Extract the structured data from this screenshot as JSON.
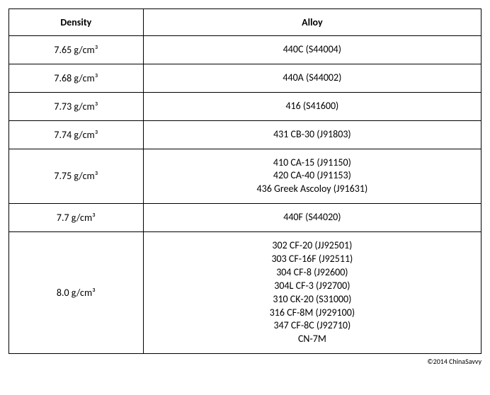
{
  "table": {
    "columns": [
      "Density",
      "Alloy"
    ],
    "rows": [
      {
        "density": "7.65 g/cm³",
        "alloys": [
          "440C (S44004)"
        ]
      },
      {
        "density": "7.68 g/cm³",
        "alloys": [
          "440A (S44002)"
        ]
      },
      {
        "density": "7.73 g/cm³",
        "alloys": [
          "416 (S41600)"
        ]
      },
      {
        "density": "7.74 g/cm³",
        "alloys": [
          "431 CB-30 (J91803)"
        ]
      },
      {
        "density": "7.75 g/cm³",
        "alloys": [
          "410 CA-15 (J91150)",
          "420 CA-40 (J91153)",
          "436 Greek Ascoloy (J91631)"
        ]
      },
      {
        "density": "7.7 g/cm³",
        "alloys": [
          "440F (S44020)"
        ]
      },
      {
        "density": "8.0 g/cm³",
        "alloys": [
          "302 CF-20 (JJ92501)",
          "303 CF-16F (J92511)",
          "304 CF-8 (J92600)",
          "304L CF-3 (J92700)",
          "310 CK-20 (S31000)",
          "316 CF-8M (J929100)",
          "347 CF-8C (J92710)",
          "CN-7M"
        ]
      }
    ]
  },
  "footer": "©2014 ChinaSavvy"
}
